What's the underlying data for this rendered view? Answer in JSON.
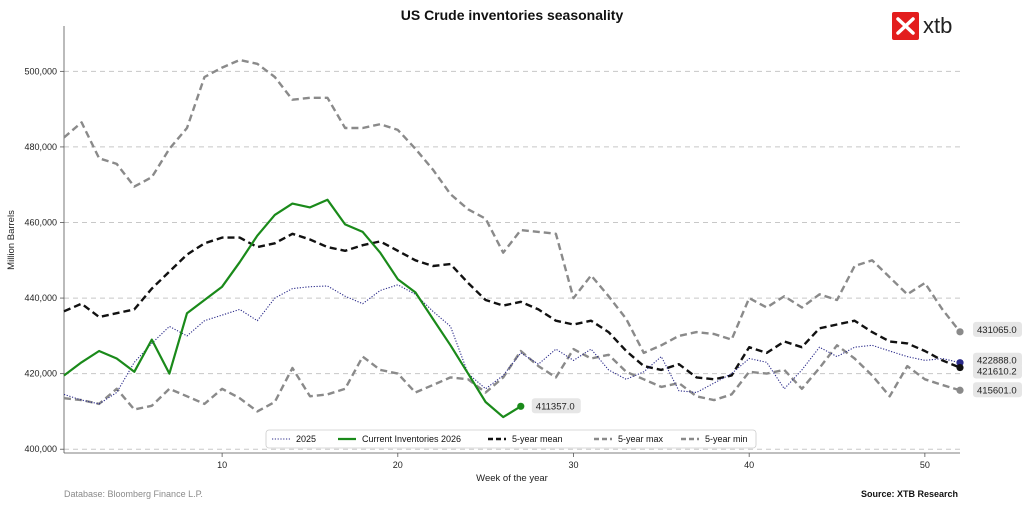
{
  "chart_data": {
    "type": "line",
    "title": "US Crude inventories seasonality",
    "xlabel": "Week of the year",
    "ylabel": "Million Barrels",
    "xlim": [
      1,
      52
    ],
    "ylim": [
      399000,
      512000
    ],
    "xticks": [
      10,
      20,
      30,
      40,
      50
    ],
    "yticks": [
      400000,
      420000,
      440000,
      460000,
      480000,
      500000
    ],
    "ytick_labels": [
      "400,000",
      "420,000",
      "440,000",
      "460,000",
      "480,000",
      "500,000"
    ],
    "grid": "horizontal dashed",
    "legend_position": "bottom-center",
    "series": [
      {
        "name": "2025",
        "style": "dotted",
        "color": "#2b2b8a",
        "x": [
          1,
          2,
          3,
          4,
          5,
          6,
          7,
          8,
          9,
          10,
          11,
          12,
          13,
          14,
          15,
          16,
          17,
          18,
          19,
          20,
          21,
          22,
          23,
          24,
          25,
          26,
          27,
          28,
          29,
          30,
          31,
          32,
          33,
          34,
          35,
          36,
          37,
          38,
          39,
          40,
          41,
          42,
          43,
          44,
          45,
          46,
          47,
          48,
          49,
          50,
          51,
          52
        ],
        "values": [
          414500,
          413000,
          412000,
          415000,
          423000,
          428000,
          432500,
          430000,
          434000,
          435500,
          437000,
          434000,
          440000,
          442500,
          443000,
          443200,
          440500,
          438500,
          442000,
          443500,
          441000,
          436500,
          432500,
          420000,
          416000,
          419500,
          425500,
          422500,
          426500,
          423500,
          426500,
          421000,
          418500,
          420500,
          424500,
          415500,
          415000,
          417500,
          420000,
          424000,
          423000,
          416000,
          421000,
          427000,
          424500,
          427000,
          427500,
          426000,
          424500,
          423500,
          424000,
          422888
        ]
      },
      {
        "name": "Current Inventories 2026",
        "style": "solid",
        "color": "#1a8a1a",
        "x": [
          1,
          2,
          3,
          4,
          5,
          6,
          7,
          8,
          9,
          10,
          11,
          12,
          13,
          14,
          15,
          16,
          17,
          18,
          19,
          20,
          21,
          22,
          23,
          24,
          25,
          26,
          27
        ],
        "values": [
          419500,
          423000,
          426000,
          424000,
          420500,
          429000,
          420000,
          436000,
          439500,
          443000,
          449500,
          456500,
          462000,
          465000,
          464000,
          466000,
          459500,
          457500,
          452000,
          445000,
          441500,
          434500,
          427500,
          420000,
          412500,
          408500,
          411357
        ]
      },
      {
        "name": "5-year mean",
        "style": "dashed",
        "color": "#111111",
        "x": [
          1,
          2,
          3,
          4,
          5,
          6,
          7,
          8,
          9,
          10,
          11,
          12,
          13,
          14,
          15,
          16,
          17,
          18,
          19,
          20,
          21,
          22,
          23,
          24,
          25,
          26,
          27,
          28,
          29,
          30,
          31,
          32,
          33,
          34,
          35,
          36,
          37,
          38,
          39,
          40,
          41,
          42,
          43,
          44,
          45,
          46,
          47,
          48,
          49,
          50,
          51,
          52
        ],
        "values": [
          436500,
          438500,
          435000,
          436000,
          437000,
          442500,
          447000,
          451500,
          454500,
          456000,
          456000,
          453500,
          454500,
          457000,
          455500,
          453500,
          452500,
          454000,
          455000,
          452500,
          450000,
          448500,
          449000,
          444000,
          439500,
          438000,
          439000,
          437000,
          434000,
          433000,
          434000,
          431000,
          426000,
          422000,
          421000,
          422500,
          419000,
          418500,
          419500,
          427000,
          425500,
          428500,
          427000,
          432000,
          433000,
          434000,
          431000,
          428500,
          428000,
          426000,
          423500,
          421610
        ]
      },
      {
        "name": "5-year max",
        "style": "dashed",
        "color": "#8a8a8a",
        "x": [
          1,
          2,
          3,
          4,
          5,
          6,
          7,
          8,
          9,
          10,
          11,
          12,
          13,
          14,
          15,
          16,
          17,
          18,
          19,
          20,
          21,
          22,
          23,
          24,
          25,
          26,
          27,
          28,
          29,
          30,
          31,
          32,
          33,
          34,
          35,
          36,
          37,
          38,
          39,
          40,
          41,
          42,
          43,
          44,
          45,
          46,
          47,
          48,
          49,
          50,
          51,
          52
        ],
        "values": [
          482500,
          486500,
          477000,
          475500,
          469500,
          472000,
          479500,
          485000,
          498500,
          501000,
          503000,
          502000,
          498500,
          492500,
          493000,
          493000,
          485000,
          485000,
          486000,
          484500,
          479500,
          474000,
          467500,
          463500,
          461000,
          452000,
          458000,
          457500,
          457000,
          440000,
          446000,
          440500,
          434500,
          425500,
          427500,
          430000,
          431000,
          430500,
          429000,
          440000,
          437500,
          440500,
          437500,
          441000,
          439500,
          448500,
          450000,
          445500,
          441000,
          444000,
          437000,
          431065
        ]
      },
      {
        "name": "5-year min",
        "style": "dashed",
        "color": "#8a8a8a",
        "x": [
          1,
          2,
          3,
          4,
          5,
          6,
          7,
          8,
          9,
          10,
          11,
          12,
          13,
          14,
          15,
          16,
          17,
          18,
          19,
          20,
          21,
          22,
          23,
          24,
          25,
          26,
          27,
          28,
          29,
          30,
          31,
          32,
          33,
          34,
          35,
          36,
          37,
          38,
          39,
          40,
          41,
          42,
          43,
          44,
          45,
          46,
          47,
          48,
          49,
          50,
          51,
          52
        ],
        "values": [
          413500,
          413000,
          412000,
          416000,
          410500,
          411500,
          416000,
          414000,
          412000,
          416000,
          413500,
          410000,
          412500,
          421500,
          414000,
          414500,
          416000,
          424500,
          421000,
          420000,
          415000,
          417000,
          419000,
          418500,
          415000,
          419000,
          426000,
          422000,
          419000,
          426500,
          424000,
          425000,
          420500,
          418500,
          416500,
          417500,
          414000,
          413000,
          414500,
          420500,
          420000,
          421000,
          416000,
          421500,
          427500,
          424000,
          419500,
          414000,
          422000,
          418500,
          417000,
          415601
        ]
      }
    ],
    "end_labels": [
      {
        "text": "411357.0",
        "series": "Current Inventories 2026",
        "x": 27,
        "value": 411357
      },
      {
        "text": "431065.0",
        "series": "5-year max",
        "x": 52,
        "value": 431065
      },
      {
        "text": "422888.0",
        "series": "2025",
        "x": 52,
        "value": 422888
      },
      {
        "text": "421610.2",
        "series": "5-year mean",
        "x": 52,
        "value": 421610.2
      },
      {
        "text": "415601.0",
        "series": "5-year min",
        "x": 52,
        "value": 415601
      }
    ]
  },
  "logo": {
    "text": "xtb",
    "color": "#e31d1d"
  },
  "footer": {
    "database": "Database: Bloomberg Finance L.P.",
    "source": "Source: XTB Research"
  }
}
